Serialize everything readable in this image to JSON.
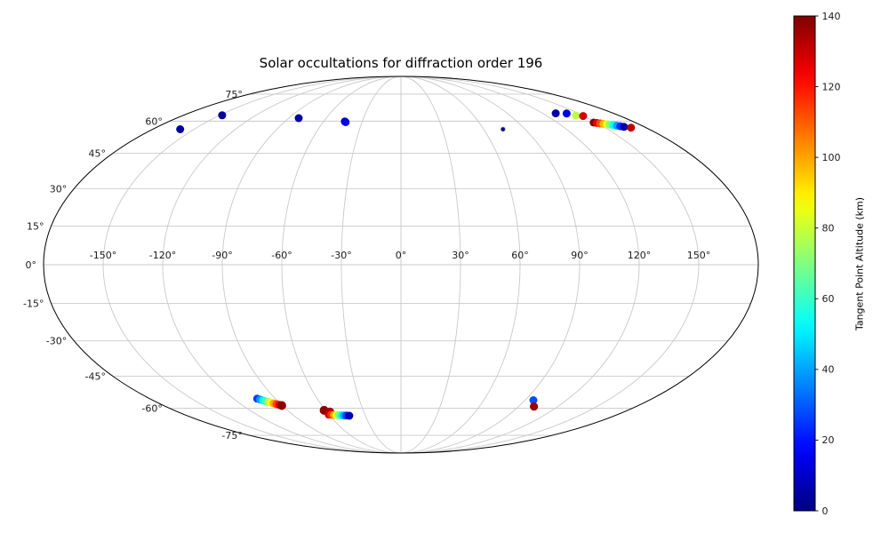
{
  "map": {
    "grid_color": "#c9c9c9",
    "outline_color": "#000000",
    "lon_ticks": [
      {
        "deg": -150,
        "label": "-150°"
      },
      {
        "deg": -120,
        "label": "-120°"
      },
      {
        "deg": -90,
        "label": "-90°"
      },
      {
        "deg": -60,
        "label": "-60°"
      },
      {
        "deg": -30,
        "label": "-30°"
      },
      {
        "deg": 0,
        "label": "0°"
      },
      {
        "deg": 30,
        "label": "30°"
      },
      {
        "deg": 60,
        "label": "60°"
      },
      {
        "deg": 90,
        "label": "90°"
      },
      {
        "deg": 120,
        "label": "120°"
      },
      {
        "deg": 150,
        "label": "150°"
      }
    ],
    "lat_ticks": [
      {
        "deg": 75,
        "label": "75°"
      },
      {
        "deg": 60,
        "label": "60°"
      },
      {
        "deg": 45,
        "label": "45°"
      },
      {
        "deg": 30,
        "label": "30°"
      },
      {
        "deg": 15,
        "label": "15°"
      },
      {
        "deg": 0,
        "label": "0°"
      },
      {
        "deg": -15,
        "label": "-15°"
      },
      {
        "deg": -30,
        "label": "-30°"
      },
      {
        "deg": -45,
        "label": "-45°"
      },
      {
        "deg": -60,
        "label": "-60°"
      },
      {
        "deg": -75,
        "label": "-75°"
      }
    ]
  },
  "colorbar": {
    "label": "Tangent Point Altitude (km)",
    "min": 0,
    "max": 140,
    "ticks": [
      0,
      20,
      40,
      60,
      80,
      100,
      120,
      140
    ],
    "colormap": "jet"
  },
  "chart_data": {
    "type": "scatter",
    "projection": "mollweide",
    "title": "Solar occultations for diffraction order 196",
    "color_label": "Tangent Point Altitude (km)",
    "color_range": [
      0,
      140
    ],
    "points": [
      {
        "lon": -160.0,
        "lat": 56.0,
        "alt": 4
      },
      {
        "lon": -148.0,
        "lat": 63.0,
        "alt": 4
      },
      {
        "lon": -82.0,
        "lat": 61.5,
        "alt": 4
      },
      {
        "lon": -43.5,
        "lat": 59.8,
        "alt": 4
      },
      {
        "lon": -42.6,
        "lat": 59.5,
        "alt": 15
      },
      {
        "lon": 74.0,
        "lat": 56.0,
        "alt": 3,
        "r": 2.5,
        "edge": "#999999"
      },
      {
        "lon": 131.0,
        "lat": 64.0,
        "alt": 5
      },
      {
        "lon": 140.0,
        "lat": 63.9,
        "alt": 14
      },
      {
        "lon": 144.5,
        "lat": 62.9,
        "alt": 78
      },
      {
        "lon": 149.5,
        "lat": 62.6,
        "alt": 128
      },
      {
        "lon": 148.0,
        "lat": 59.3,
        "alt": 140
      },
      {
        "lon": 149.9,
        "lat": 59.1,
        "alt": 126
      },
      {
        "lon": 151.8,
        "lat": 58.9,
        "alt": 112
      },
      {
        "lon": 153.7,
        "lat": 58.65,
        "alt": 98
      },
      {
        "lon": 155.6,
        "lat": 58.45,
        "alt": 84
      },
      {
        "lon": 157.4,
        "lat": 58.25,
        "alt": 70
      },
      {
        "lon": 159.3,
        "lat": 58.0,
        "alt": 55
      },
      {
        "lon": 161.2,
        "lat": 57.75,
        "alt": 40
      },
      {
        "lon": 163.1,
        "lat": 57.5,
        "alt": 24
      },
      {
        "lon": 165.0,
        "lat": 57.2,
        "alt": 6
      },
      {
        "lon": 169.0,
        "lat": 56.8,
        "alt": 132
      },
      {
        "lon": -103.0,
        "lat": -55.3,
        "alt": 26
      },
      {
        "lon": -101.6,
        "lat": -55.7,
        "alt": 39
      },
      {
        "lon": -100.2,
        "lat": -56.1,
        "alt": 51
      },
      {
        "lon": -98.8,
        "lat": -56.5,
        "alt": 63
      },
      {
        "lon": -97.4,
        "lat": -56.85,
        "alt": 76
      },
      {
        "lon": -96.0,
        "lat": -57.2,
        "alt": 88
      },
      {
        "lon": -94.6,
        "lat": -57.55,
        "alt": 100
      },
      {
        "lon": -93.2,
        "lat": -57.9,
        "alt": 113
      },
      {
        "lon": -91.8,
        "lat": -58.25,
        "alt": 125
      },
      {
        "lon": -90.4,
        "lat": -58.6,
        "alt": 138,
        "r": 5
      },
      {
        "lon": -61.0,
        "lat": -61.0,
        "alt": 138,
        "r": 5
      },
      {
        "lon": -57.5,
        "lat": -61.9,
        "alt": 134,
        "r": 5
      },
      {
        "lon": -60.0,
        "lat": -63.2,
        "alt": 130
      },
      {
        "lon": -58.0,
        "lat": -63.3,
        "alt": 116
      },
      {
        "lon": -56.0,
        "lat": -63.4,
        "alt": 101
      },
      {
        "lon": -54.0,
        "lat": -63.45,
        "alt": 86
      },
      {
        "lon": -52.0,
        "lat": -63.5,
        "alt": 71
      },
      {
        "lon": -50.0,
        "lat": -63.6,
        "alt": 56
      },
      {
        "lon": -48.0,
        "lat": -63.65,
        "alt": 41
      },
      {
        "lon": -46.0,
        "lat": -63.7,
        "alt": 26
      },
      {
        "lon": -43.5,
        "lat": -63.8,
        "alt": 8
      },
      {
        "lon": 96.0,
        "lat": -56.0,
        "alt": 28
      },
      {
        "lon": 101.5,
        "lat": -59.0,
        "alt": 126
      },
      {
        "lon": 102.0,
        "lat": -59.2,
        "alt": 136
      }
    ]
  }
}
